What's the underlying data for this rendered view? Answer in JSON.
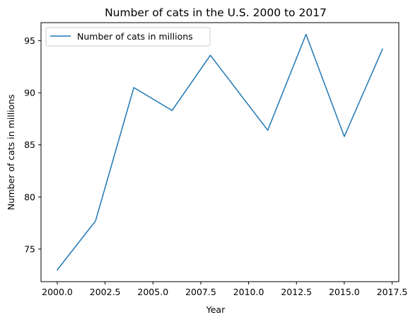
{
  "chart_data": {
    "type": "line",
    "title": "Number of cats in the U.S. 2000 to 2017",
    "xlabel": "Year",
    "ylabel": "Number of cats in millions",
    "xlim": [
      1999.15,
      2017.85
    ],
    "ylim": [
      71.87,
      96.73
    ],
    "xticks": [
      2000.0,
      2002.5,
      2005.0,
      2007.5,
      2010.0,
      2012.5,
      2015.0,
      2017.5
    ],
    "xtick_labels": [
      "2000.0",
      "2002.5",
      "2005.0",
      "2007.5",
      "2010.0",
      "2012.5",
      "2015.0",
      "2017.5"
    ],
    "yticks": [
      75,
      80,
      85,
      90,
      95
    ],
    "ytick_labels": [
      "75",
      "80",
      "85",
      "90",
      "95"
    ],
    "grid": false,
    "legend": {
      "position": "top-left"
    },
    "series": [
      {
        "name": "Number of cats in millions",
        "color": "#1f77b4",
        "x": [
          2000,
          2002,
          2004,
          2006,
          2008,
          2011,
          2013,
          2015,
          2017
        ],
        "y": [
          73.0,
          77.7,
          90.5,
          88.3,
          93.6,
          86.4,
          95.6,
          85.8,
          94.2
        ]
      }
    ]
  }
}
